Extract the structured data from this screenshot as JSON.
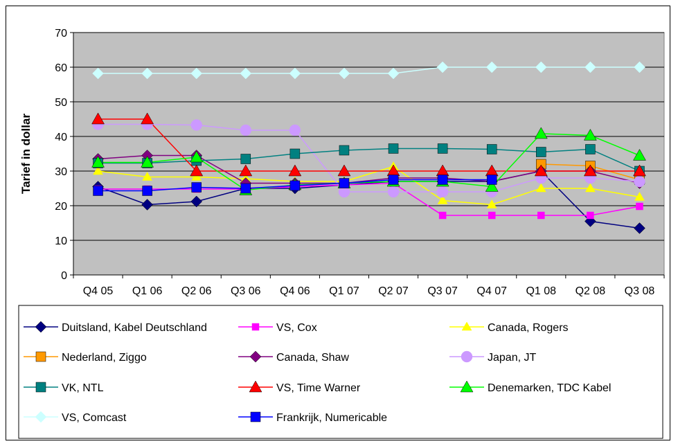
{
  "chart_data": {
    "type": "line",
    "ylabel": "Tarief in dollar",
    "ylim": [
      0,
      70
    ],
    "yticks": [
      0,
      10,
      20,
      30,
      40,
      50,
      60,
      70
    ],
    "categories": [
      "Q4 05",
      "Q1 06",
      "Q2 06",
      "Q3 06",
      "Q4 06",
      "Q1 07",
      "Q2 07",
      "Q3 07",
      "Q4 07",
      "Q1 08",
      "Q2 08",
      "Q3 08"
    ],
    "plot_background": "#C0C0C0",
    "grid": "horizontal",
    "legend_position": "bottom",
    "series": [
      {
        "name": "Duitsland, Kabel Deutschland",
        "color": "#000080",
        "marker": "diamond",
        "values": [
          25.5,
          20.3,
          21.2,
          25.0,
          25.0,
          26.0,
          27.0,
          27.0,
          27.0,
          30.0,
          15.5,
          13.5
        ]
      },
      {
        "name": "VS, Cox",
        "color": "#FF00FF",
        "marker": "square-small",
        "values": [
          24.8,
          24.8,
          24.8,
          24.8,
          25.5,
          26.0,
          26.5,
          17.2,
          17.2,
          17.2,
          17.2,
          19.8
        ]
      },
      {
        "name": "Canada, Rogers",
        "color": "#FFFF00",
        "marker": "triangle-small",
        "values": [
          30.0,
          28.3,
          28.3,
          27.8,
          27.0,
          27.0,
          31.3,
          21.5,
          20.3,
          25.0,
          25.0,
          22.5
        ]
      },
      {
        "name": "Nederland, Ziggo",
        "color": "#FF9900",
        "marker": "square",
        "values": [
          null,
          null,
          null,
          null,
          null,
          null,
          null,
          null,
          null,
          32.0,
          31.5,
          27.5
        ]
      },
      {
        "name": "Canada, Shaw",
        "color": "#800080",
        "marker": "diamond",
        "values": [
          33.5,
          34.5,
          34.5,
          26.5,
          26.5,
          26.5,
          28.0,
          28.0,
          27.0,
          30.0,
          30.0,
          26.5
        ]
      },
      {
        "name": "Japan, JT",
        "color": "#CC99FF",
        "marker": "circle",
        "values": [
          43.5,
          43.5,
          43.3,
          41.8,
          41.8,
          24.0,
          24.0,
          24.0,
          24.0,
          28.0,
          28.0,
          27.0
        ]
      },
      {
        "name": "VK, NTL",
        "color": "#008080",
        "marker": "square",
        "values": [
          32.3,
          32.3,
          33.0,
          33.5,
          35.0,
          36.0,
          36.5,
          36.5,
          36.3,
          35.5,
          36.3,
          30.0
        ]
      },
      {
        "name": "VS, Time Warner",
        "color": "#FF0000",
        "marker": "triangle",
        "values": [
          45.0,
          45.0,
          30.0,
          30.0,
          30.0,
          30.0,
          30.0,
          30.0,
          30.0,
          30.0,
          30.0,
          30.0
        ]
      },
      {
        "name": "Denemarken, TDC Kabel",
        "color": "#00FF00",
        "marker": "triangle",
        "values": [
          32.5,
          32.5,
          34.0,
          24.5,
          26.0,
          26.5,
          27.0,
          27.0,
          25.5,
          40.8,
          40.3,
          34.5
        ]
      },
      {
        "name": "VS, Comcast",
        "color": "#CCFFFF",
        "marker": "diamond",
        "values": [
          58.2,
          58.2,
          58.2,
          58.2,
          58.2,
          58.2,
          58.2,
          60.0,
          60.0,
          60.0,
          60.0,
          60.0
        ]
      },
      {
        "name": "Frankrijk, Numericable",
        "color": "#0000FF",
        "marker": "square",
        "values": [
          24.3,
          24.3,
          25.3,
          25.0,
          25.8,
          26.5,
          27.5,
          27.5,
          27.5,
          null,
          null,
          null
        ]
      }
    ]
  }
}
